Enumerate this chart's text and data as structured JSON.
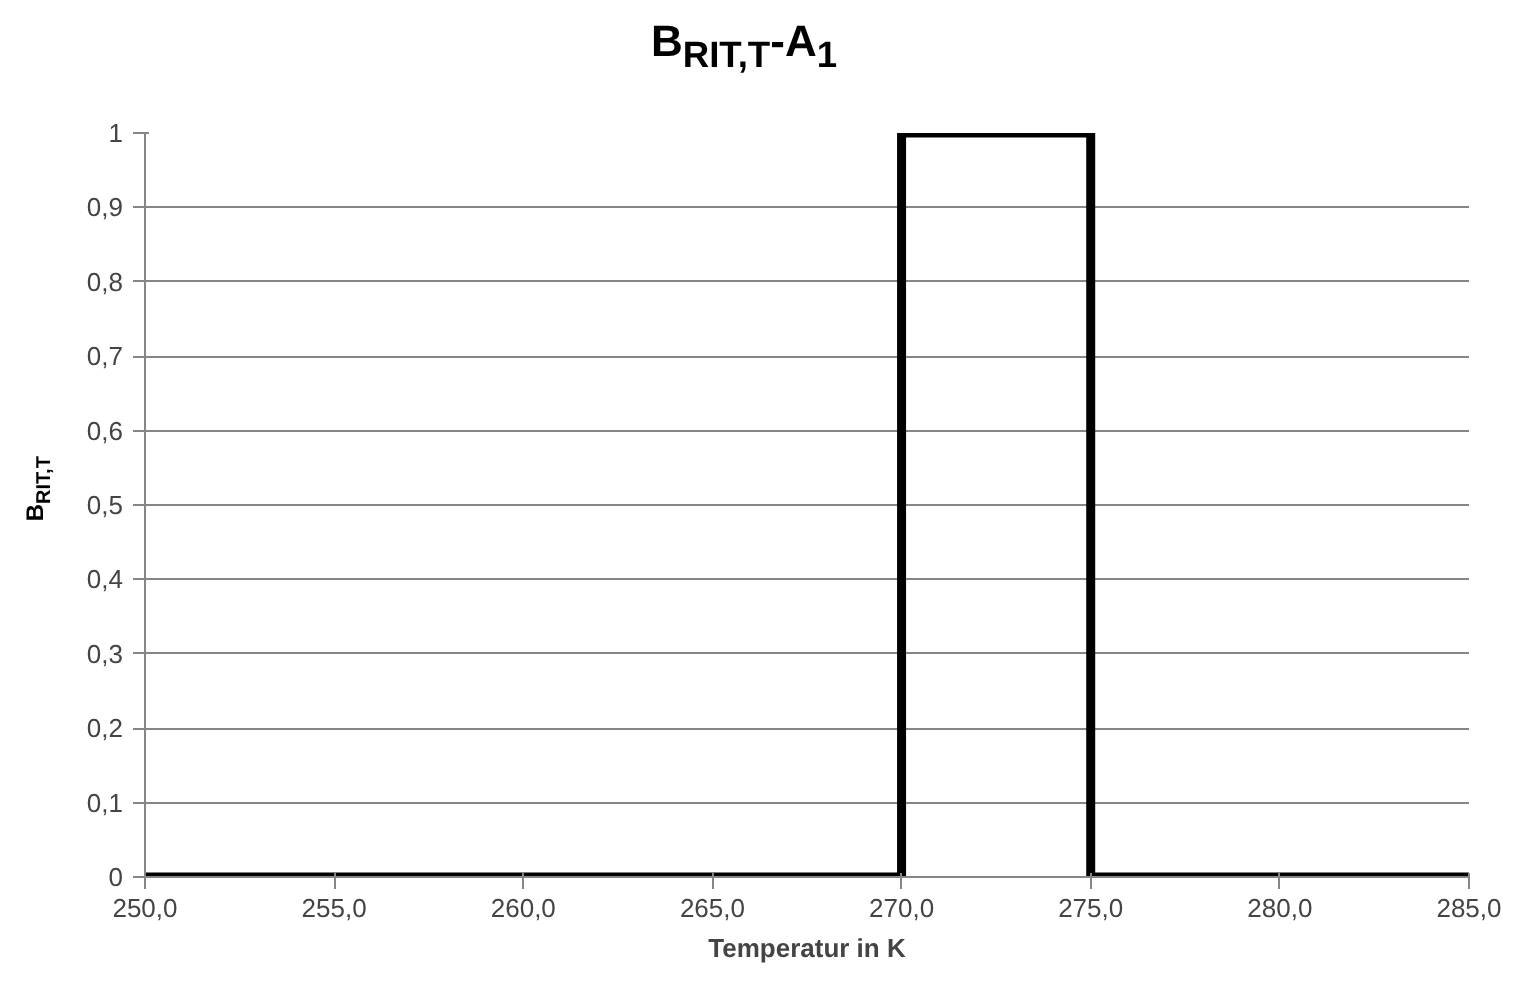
{
  "chart_data": {
    "type": "line",
    "title": "B$_{RIT,T}$-A$_{1}$",
    "xlabel": "Temperatur in K",
    "ylabel": "B$_{RIT,T}$",
    "x": [
      250,
      270,
      270,
      275,
      275,
      285
    ],
    "series": [
      {
        "color": "#000000",
        "values": [
          0,
          0,
          1,
          1,
          0,
          0
        ]
      }
    ],
    "xlim": [
      250,
      285
    ],
    "xticks": [
      {
        "value": 250,
        "label": "250,0"
      },
      {
        "value": 255,
        "label": "255,0"
      },
      {
        "value": 260,
        "label": "260,0"
      },
      {
        "value": 265,
        "label": "265,0"
      },
      {
        "value": 270,
        "label": "270,0"
      },
      {
        "value": 275,
        "label": "275,0"
      },
      {
        "value": 280,
        "label": "280,0"
      },
      {
        "value": 285,
        "label": "285,0"
      }
    ],
    "ylim": [
      0,
      1
    ],
    "yticks": [
      0,
      {
        "value": 0.1,
        "label": "0,1"
      },
      {
        "value": 0.2,
        "label": "0,2"
      },
      {
        "value": 0.3,
        "label": "0,3"
      },
      {
        "value": 0.4,
        "label": "0,4"
      },
      {
        "value": 0.5,
        "label": "0,5"
      },
      {
        "value": 0.6,
        "label": "0,6"
      },
      {
        "value": 0.7,
        "label": "0,7"
      },
      {
        "value": 0.8,
        "label": "0,8"
      },
      {
        "value": 0.9,
        "label": "0,9"
      },
      1
    ],
    "grid": "y",
    "marker": "none",
    "line_style": "solid"
  }
}
